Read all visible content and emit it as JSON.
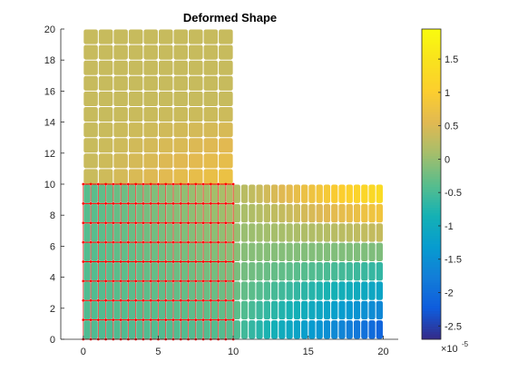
{
  "chart_data": {
    "type": "heatmap",
    "title": "Deformed Shape",
    "xlabel": "",
    "ylabel": "",
    "xlim": [
      -1.5,
      21
    ],
    "ylim": [
      0,
      20
    ],
    "xticks": [
      0,
      5,
      10,
      15,
      20
    ],
    "yticks": [
      0,
      2,
      4,
      6,
      8,
      10,
      12,
      14,
      16,
      18,
      20
    ],
    "grid": false,
    "colormap": "parula",
    "color_limits": [
      -2.7,
      1.95
    ],
    "colorbar": {
      "ticks": [
        -2.5,
        -2,
        -1.5,
        -1,
        -0.5,
        0,
        0.5,
        1,
        1.5
      ],
      "tick_labels": [
        "-2.5",
        "-2",
        "-1.5",
        "-1",
        "-0.5",
        "0",
        "0.5",
        "1",
        "1.5"
      ],
      "exponent_base": "×10",
      "exponent": "-5"
    },
    "regions": [
      {
        "name": "",
        "x_range": [
          0,
          10
        ],
        "y_range": [
          0,
          20
        ]
      },
      {
        "name": "",
        "x_range": [
          10,
          20
        ],
        "y_range": [
          0,
          10
        ]
      }
    ],
    "color_field_samples": [
      {
        "x": 5,
        "y": 15,
        "value": 0.4
      },
      {
        "x": 9,
        "y": 10,
        "value": 0.8
      },
      {
        "x": 5,
        "y": 2,
        "value": -0.4
      },
      {
        "x": 20,
        "y": 9,
        "value": 1.6
      },
      {
        "x": 15,
        "y": 5,
        "value": -0.9
      },
      {
        "x": 20,
        "y": 0.5,
        "value": -2.4
      }
    ],
    "constraint_markers": {
      "color": "#ff0000",
      "x_range": [
        0,
        10
      ],
      "y_values": [
        0,
        1.25,
        2.5,
        3.75,
        5,
        6.25,
        7.5,
        8.75,
        10
      ]
    }
  }
}
